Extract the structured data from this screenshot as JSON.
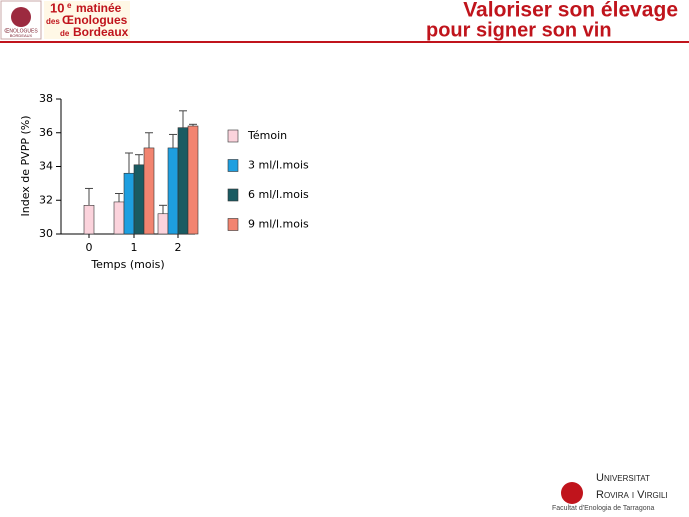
{
  "header": {
    "logo_top": "ŒNOLOGUES",
    "logo_bottom": "BORDEAUX",
    "event_number": "10",
    "event_suffix": "e",
    "event_word": "matinée",
    "des": "des",
    "oenologues": "Œnologues",
    "de": "de",
    "bordeaux": "Bordeaux",
    "title_line1": "Valoriser son élevage",
    "title_line2": "pour signer son vin"
  },
  "footer": {
    "university_line1": "Universitat",
    "university_line2": "Rovira i Virgili",
    "faculty": "Facultat d'Enologia de Tarragona"
  },
  "chart_data": {
    "type": "bar",
    "y_label": "Index de PVPP (%)",
    "x_label": "Temps (mois)",
    "categories": [
      "0",
      "1",
      "2"
    ],
    "series": [
      {
        "name": "Témoin",
        "color": "#fbd3dc",
        "values": [
          31.7,
          31.9,
          31.2
        ],
        "errors": [
          1.0,
          0.5,
          0.5
        ]
      },
      {
        "name": "3 ml/l.mois",
        "color": "#1e9fe0",
        "values": [
          null,
          33.6,
          35.1
        ],
        "errors": [
          null,
          1.2,
          0.8
        ]
      },
      {
        "name": "6 ml/l.mois",
        "color": "#1a5b62",
        "values": [
          null,
          34.1,
          36.3
        ],
        "errors": [
          null,
          0.6,
          1.0
        ]
      },
      {
        "name": "9 ml/l.mois",
        "color": "#f28470",
        "values": [
          null,
          35.1,
          36.4
        ],
        "errors": [
          null,
          0.9,
          0.1
        ]
      }
    ],
    "ylim": [
      30,
      38
    ],
    "yticks": [
      30,
      32,
      34,
      36,
      38
    ],
    "grid": false
  }
}
